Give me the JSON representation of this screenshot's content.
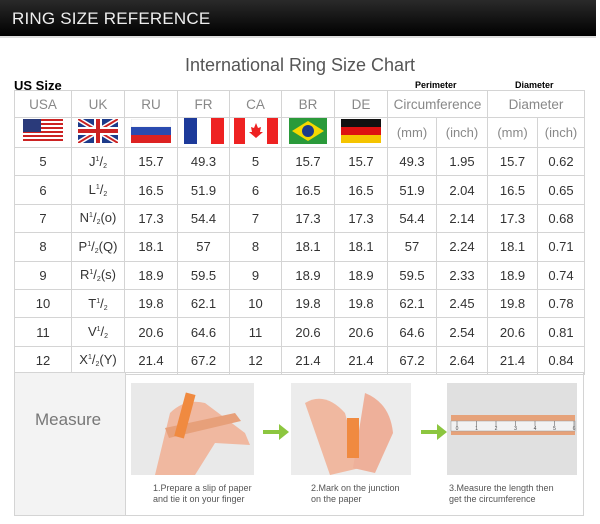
{
  "header": {
    "title": "RING SIZE REFERENCE"
  },
  "chart_title": "International Ring Size Chart",
  "labels": {
    "us_size": "US Size",
    "perimeter": "Perimeter",
    "diameter": "Diameter"
  },
  "table": {
    "columns": [
      "USA",
      "UK",
      "RU",
      "FR",
      "CA",
      "BR",
      "DE",
      "Circumference",
      "Diameter"
    ],
    "units": [
      "(mm)",
      "(inch)",
      "(mm)",
      "(inch)"
    ],
    "rows": [
      [
        5,
        [
          "J",
          "1",
          "/",
          "2"
        ],
        15.7,
        49.3,
        5,
        15.7,
        15.7,
        49.3,
        1.95,
        15.7,
        0.62
      ],
      [
        6,
        [
          "L",
          "1",
          "/",
          "2"
        ],
        16.5,
        51.9,
        6,
        16.5,
        16.5,
        51.9,
        2.04,
        16.5,
        0.65
      ],
      [
        7,
        [
          "N",
          "1",
          "/",
          "2",
          "(o)"
        ],
        17.3,
        54.4,
        7,
        17.3,
        17.3,
        54.4,
        2.14,
        17.3,
        0.68
      ],
      [
        8,
        [
          "P",
          "1",
          "/",
          "2",
          "(Q)"
        ],
        18.1,
        57,
        8,
        18.1,
        18.1,
        57,
        2.24,
        18.1,
        0.71
      ],
      [
        9,
        [
          "R",
          "1",
          "/",
          "2",
          "(s)"
        ],
        18.9,
        59.5,
        9,
        18.9,
        18.9,
        59.5,
        2.33,
        18.9,
        0.74
      ],
      [
        10,
        [
          "T",
          "1",
          "/",
          "2"
        ],
        19.8,
        62.1,
        10,
        19.8,
        19.8,
        62.1,
        2.45,
        19.8,
        0.78
      ],
      [
        11,
        [
          "V",
          "1",
          "/",
          "2"
        ],
        20.6,
        64.6,
        11,
        20.6,
        20.6,
        64.6,
        2.54,
        20.6,
        0.81
      ],
      [
        12,
        [
          "X",
          "1",
          "/",
          "2",
          "(Y)"
        ],
        21.4,
        67.2,
        12,
        21.4,
        21.4,
        67.2,
        2.64,
        21.4,
        0.84
      ]
    ]
  },
  "measure": {
    "label": "Measure",
    "steps": [
      [
        "1.Prepare a slip of paper",
        "and tie it on your finger"
      ],
      [
        "2.Mark on the junction",
        "on the paper"
      ],
      [
        "3.Measure the length then",
        "get the circumference"
      ]
    ],
    "ruler": [
      0,
      1,
      2,
      3,
      4,
      5,
      6
    ]
  }
}
